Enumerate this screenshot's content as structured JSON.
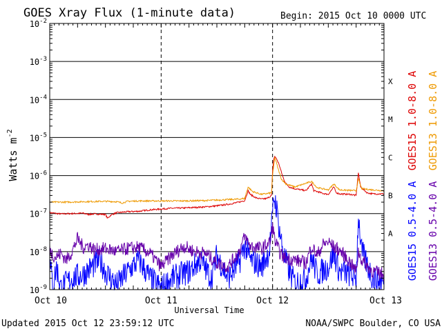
{
  "chart_data": {
    "type": "line",
    "title": "GOES Xray Flux (1-minute data)",
    "begin_label": "Begin:  2015 Oct 10 0000 UTC",
    "xlabel": "Universal Time",
    "ylabel_base": "Watts m",
    "ylabel_exp": "-2",
    "y_scale": "log",
    "ylim": [
      1e-09,
      0.01
    ],
    "y_ticks": [
      {
        "value": 1e-09,
        "base": "10",
        "exp": "-9"
      },
      {
        "value": 1e-08,
        "base": "10",
        "exp": "-8"
      },
      {
        "value": 1e-07,
        "base": "10",
        "exp": "-7"
      },
      {
        "value": 1e-06,
        "base": "10",
        "exp": "-6"
      },
      {
        "value": 1e-05,
        "base": "10",
        "exp": "-5"
      },
      {
        "value": 0.0001,
        "base": "10",
        "exp": "-4"
      },
      {
        "value": 0.001,
        "base": "10",
        "exp": "-3"
      },
      {
        "value": 0.01,
        "base": "10",
        "exp": "-2"
      }
    ],
    "x_unit": "days since 2015 Oct 10 0000 UTC",
    "xlim": [
      0,
      3
    ],
    "x_ticks": [
      {
        "value": 0,
        "label": "Oct 10"
      },
      {
        "value": 1,
        "label": "Oct 11"
      },
      {
        "value": 2,
        "label": "Oct 12"
      },
      {
        "value": 3,
        "label": "Oct 13"
      }
    ],
    "flare_classes": [
      {
        "label": "A",
        "value": 3e-08
      },
      {
        "label": "B",
        "value": 3e-07
      },
      {
        "label": "C",
        "value": 3e-06
      },
      {
        "label": "M",
        "value": 3e-05
      },
      {
        "label": "X",
        "value": 0.0003
      }
    ],
    "grid": true,
    "legend_position": "right",
    "series": [
      {
        "name": "GOES15 1.0-8.0 A",
        "color": "#dd0000",
        "points": [
          [
            0,
            1.05e-07
          ],
          [
            0.1,
            9.8e-08
          ],
          [
            0.2,
            1e-07
          ],
          [
            0.3,
            1.02e-07
          ],
          [
            0.35,
            9.5e-08
          ],
          [
            0.4,
            9.8e-08
          ],
          [
            0.5,
            9.5e-08
          ],
          [
            0.52,
            7.5e-08
          ],
          [
            0.55,
            9.2e-08
          ],
          [
            0.6,
            1.05e-07
          ],
          [
            0.7,
            1.12e-07
          ],
          [
            0.8,
            1.15e-07
          ],
          [
            0.9,
            1.25e-07
          ],
          [
            1.0,
            1.32e-07
          ],
          [
            1.1,
            1.38e-07
          ],
          [
            1.2,
            1.4e-07
          ],
          [
            1.3,
            1.45e-07
          ],
          [
            1.4,
            1.5e-07
          ],
          [
            1.5,
            1.6e-07
          ],
          [
            1.6,
            1.75e-07
          ],
          [
            1.7,
            2e-07
          ],
          [
            1.75,
            2.2e-07
          ],
          [
            1.78,
            4e-07
          ],
          [
            1.8,
            3.2e-07
          ],
          [
            1.85,
            2.6e-07
          ],
          [
            1.9,
            2.4e-07
          ],
          [
            1.95,
            2.5e-07
          ],
          [
            1.99,
            3e-07
          ],
          [
            2.0,
            1.3e-06
          ],
          [
            2.01,
            2.7e-06
          ],
          [
            2.02,
            3.2e-06
          ],
          [
            2.04,
            2.6e-06
          ],
          [
            2.06,
            1.9e-06
          ],
          [
            2.08,
            1.2e-06
          ],
          [
            2.1,
            8e-07
          ],
          [
            2.12,
            6.2e-07
          ],
          [
            2.15,
            5e-07
          ],
          [
            2.2,
            4.5e-07
          ],
          [
            2.3,
            4e-07
          ],
          [
            2.35,
            6e-07
          ],
          [
            2.37,
            4e-07
          ],
          [
            2.4,
            3.8e-07
          ],
          [
            2.45,
            3.4e-07
          ],
          [
            2.5,
            3.2e-07
          ],
          [
            2.55,
            5e-07
          ],
          [
            2.57,
            3.6e-07
          ],
          [
            2.6,
            3.3e-07
          ],
          [
            2.7,
            3.2e-07
          ],
          [
            2.75,
            3e-07
          ],
          [
            2.77,
            1.2e-06
          ],
          [
            2.79,
            5e-07
          ],
          [
            2.85,
            3.5e-07
          ],
          [
            2.9,
            3.3e-07
          ],
          [
            3.0,
            3.3e-07
          ]
        ]
      },
      {
        "name": "GOES13 1.0-8.0 A",
        "color": "#ee9900",
        "points": [
          [
            0,
            2e-07
          ],
          [
            0.15,
            2e-07
          ],
          [
            0.3,
            2.05e-07
          ],
          [
            0.5,
            2.1e-07
          ],
          [
            0.6,
            2.05e-07
          ],
          [
            0.65,
            1.9e-07
          ],
          [
            0.7,
            2.1e-07
          ],
          [
            0.8,
            2.15e-07
          ],
          [
            1.0,
            2.15e-07
          ],
          [
            1.2,
            2.15e-07
          ],
          [
            1.4,
            2.2e-07
          ],
          [
            1.55,
            2.3e-07
          ],
          [
            1.7,
            2.4e-07
          ],
          [
            1.75,
            2.5e-07
          ],
          [
            1.78,
            5e-07
          ],
          [
            1.82,
            3.8e-07
          ],
          [
            1.9,
            3.2e-07
          ],
          [
            1.99,
            3.5e-07
          ],
          [
            2.0,
            1e-06
          ],
          [
            2.02,
            3e-06
          ],
          [
            2.05,
            1.5e-06
          ],
          [
            2.08,
            8e-07
          ],
          [
            2.12,
            6e-07
          ],
          [
            2.2,
            5e-07
          ],
          [
            2.35,
            7e-07
          ],
          [
            2.4,
            4.8e-07
          ],
          [
            2.5,
            4.2e-07
          ],
          [
            2.55,
            6e-07
          ],
          [
            2.6,
            4.2e-07
          ],
          [
            2.75,
            4e-07
          ],
          [
            2.77,
            8e-07
          ],
          [
            2.8,
            4.5e-07
          ],
          [
            2.9,
            4.2e-07
          ],
          [
            3.0,
            4e-07
          ]
        ]
      },
      {
        "name": "GOES15 0.5-4.0 A",
        "color": "#0000ff",
        "points": [
          [
            0,
            5e-09
          ],
          [
            0.03,
            1.2e-09
          ],
          [
            0.06,
            4e-09
          ],
          [
            0.1,
            1.1e-09
          ],
          [
            0.2,
            2e-09
          ],
          [
            0.3,
            2.5e-09
          ],
          [
            0.45,
            6e-09
          ],
          [
            0.5,
            3e-09
          ],
          [
            0.6,
            1.3e-09
          ],
          [
            0.7,
            3e-09
          ],
          [
            0.8,
            6e-09
          ],
          [
            0.9,
            2e-09
          ],
          [
            1.0,
            1.1e-09
          ],
          [
            1.1,
            2e-09
          ],
          [
            1.25,
            3e-09
          ],
          [
            1.35,
            6e-09
          ],
          [
            1.45,
            2e-09
          ],
          [
            1.5,
            8e-09
          ],
          [
            1.6,
            2e-09
          ],
          [
            1.7,
            5e-09
          ],
          [
            1.75,
            1.5e-08
          ],
          [
            1.8,
            6e-09
          ],
          [
            1.9,
            4e-09
          ],
          [
            1.97,
            1e-08
          ],
          [
            2.0,
            8e-08
          ],
          [
            2.01,
            2.8e-07
          ],
          [
            2.03,
            1.8e-07
          ],
          [
            2.06,
            4e-08
          ],
          [
            2.1,
            8e-09
          ],
          [
            2.15,
            3e-09
          ],
          [
            2.2,
            1.5e-09
          ],
          [
            2.3,
            2e-09
          ],
          [
            2.35,
            7e-09
          ],
          [
            2.4,
            2.5e-09
          ],
          [
            2.5,
            4e-09
          ],
          [
            2.55,
            9e-09
          ],
          [
            2.6,
            3e-09
          ],
          [
            2.7,
            2.5e-09
          ],
          [
            2.75,
            2e-09
          ],
          [
            2.77,
            9e-08
          ],
          [
            2.8,
            1e-08
          ],
          [
            2.9,
            2e-09
          ],
          [
            3.0,
            1.5e-09
          ]
        ]
      },
      {
        "name": "GOES13 0.5-4.0 A",
        "color": "#6600aa",
        "points": [
          [
            0,
            1.1e-08
          ],
          [
            0.05,
            7e-09
          ],
          [
            0.1,
            9e-09
          ],
          [
            0.15,
            6e-09
          ],
          [
            0.2,
            1e-08
          ],
          [
            0.25,
            2.2e-08
          ],
          [
            0.3,
            1.3e-08
          ],
          [
            0.35,
            1.5e-08
          ],
          [
            0.4,
            1.1e-08
          ],
          [
            0.5,
            1.2e-08
          ],
          [
            0.6,
            1e-08
          ],
          [
            0.7,
            1.2e-08
          ],
          [
            0.8,
            1.3e-08
          ],
          [
            0.9,
            9e-09
          ],
          [
            1.0,
            4e-09
          ],
          [
            1.1,
            8e-09
          ],
          [
            1.2,
            1.4e-08
          ],
          [
            1.3,
            1e-08
          ],
          [
            1.4,
            9e-09
          ],
          [
            1.5,
            5e-09
          ],
          [
            1.6,
            4e-09
          ],
          [
            1.7,
            1e-08
          ],
          [
            1.75,
            2.5e-08
          ],
          [
            1.8,
            1.4e-08
          ],
          [
            1.9,
            1.2e-08
          ],
          [
            1.98,
            1.8e-08
          ],
          [
            2.0,
            5e-08
          ],
          [
            2.02,
            2e-08
          ],
          [
            2.06,
            1e-08
          ],
          [
            2.1,
            7e-09
          ],
          [
            2.2,
            6e-09
          ],
          [
            2.3,
            5e-09
          ],
          [
            2.35,
            1.4e-08
          ],
          [
            2.4,
            8e-09
          ],
          [
            2.45,
            1.5e-08
          ],
          [
            2.5,
            1.8e-08
          ],
          [
            2.55,
            1.3e-08
          ],
          [
            2.6,
            1.1e-08
          ],
          [
            2.7,
            5e-09
          ],
          [
            2.75,
            3e-09
          ],
          [
            2.77,
            1e-08
          ],
          [
            2.8,
            6e-09
          ],
          [
            2.9,
            3e-09
          ],
          [
            3.0,
            2.5e-09
          ]
        ]
      }
    ]
  },
  "footer": {
    "updated": "Updated 2015 Oct 12 23:59:12 UTC",
    "credit": "NOAA/SWPC Boulder, CO USA"
  },
  "colors": {
    "gridline": "#000000",
    "background": "#ffffff"
  }
}
